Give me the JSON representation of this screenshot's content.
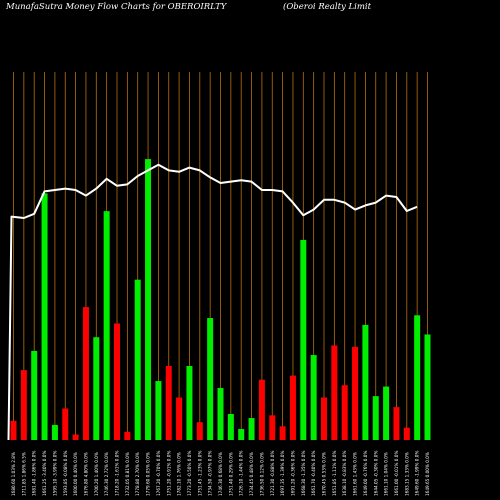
{
  "header": {
    "title": "MunafaSutra  Money Flow  Charts for OBEROIRLTY",
    "subtitle": "(Oberoi   Realty Limit"
  },
  "chart_data": {
    "type": "bar",
    "title": "MunafaSutra  Money Flow  Charts for OBEROIRLTY",
    "subtitle": "(Oberoi   Realty Limit",
    "colors": {
      "up": "#00ee00",
      "down": "#ff0000",
      "grid": "#b8700a",
      "line": "#ffffff",
      "background": "#000000"
    },
    "categories": [
      "1680.60 1.03% 2.8%",
      "1711.85 1.86% 6.5%",
      "1681.40 -1.86% 0.0%",
      "1661.25 -3.40% 0.0%",
      "1595.10 -3.99% 0.0%",
      "1593.85 -0.08% 0.0%",
      "1600.00 0.40% 0.0%",
      "1676.80 4.80% 0.0%",
      "1700.20 1.40% 0.0%",
      "1746.30 2.72% 0.0%",
      "1718.20 -1.61% 0.0%",
      "1732.05 0.81% 0.0%",
      "1778.80 2.70% 0.0%",
      "1779.60 0.05% 0.0%",
      "1767.20 -0.70% 0.0%",
      "1751.20 -0.91% 0.0%",
      "1782.10 1.76% 0.0%",
      "1773.20 -0.50% 0.0%",
      "1751.45 -1.23% 0.0%",
      "1734.50 -0.97% 0.0%",
      "1746.30 0.68% 0.0%",
      "1751.40 0.29% 0.0%",
      "1726.10 -1.44% 0.0%",
      "1734.45 0.48% 0.0%",
      "1736.50 0.12% 0.0%",
      "1721.30 -0.88% 0.0%",
      "1697.35 -1.39% 0.0%",
      "1691.20 -0.36% 0.0%",
      "1668.30 -1.35% 0.0%",
      "1661.70 -0.40% 0.0%",
      "1670.45 0.53% 0.0%",
      "1651.85 -1.11% 0.0%",
      "1638.10 -0.83% 0.0%",
      "1661.60 1.43% 0.0%",
      "1649.00 -0.76% 0.0%",
      "1644.05 -0.30% 0.0%",
      "1661.10 1.04% 0.0%",
      "1661.00 -0.01% 0.0%",
      "1683.15 1.33% 0.0%",
      "1649.60 -1.99% 0.0%",
      "1649.65 0.00% 0.0%"
    ],
    "directions": [
      "down",
      "down",
      "up",
      "up",
      "up",
      "down",
      "down",
      "down",
      "up",
      "up",
      "down",
      "down",
      "up",
      "up",
      "up",
      "down",
      "down",
      "up",
      "down",
      "up",
      "up",
      "up",
      "up",
      "up",
      "down",
      "down",
      "down",
      "down",
      "up",
      "up",
      "down",
      "down",
      "down",
      "down",
      "up",
      "up",
      "up",
      "down",
      "down",
      "up",
      "up"
    ],
    "values": [
      14,
      51,
      65,
      180,
      11,
      23,
      4,
      97,
      75,
      167,
      85,
      6,
      117,
      205,
      43,
      54,
      31,
      54,
      13,
      89,
      38,
      19,
      8,
      16,
      44,
      18,
      10,
      47,
      146,
      62,
      31,
      69,
      40,
      68,
      84,
      32,
      39,
      24,
      9,
      91,
      77
    ],
    "price_line": [
      31,
      30,
      33,
      49,
      50,
      51,
      50,
      46,
      51,
      58,
      53,
      54,
      60,
      64,
      68,
      64,
      63,
      66,
      64,
      59,
      55,
      56,
      57,
      56,
      50,
      50,
      49,
      41,
      32,
      36,
      43,
      43,
      41,
      36,
      39,
      41,
      46,
      45,
      35,
      38
    ],
    "price_line_start": -200,
    "ylim": [
      0,
      270
    ]
  }
}
